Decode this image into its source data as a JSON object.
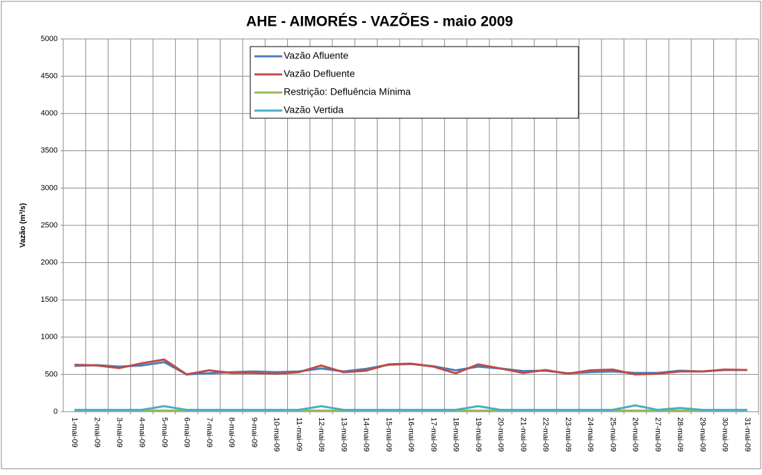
{
  "chart_data": {
    "type": "line",
    "title": "AHE - AIMORÉS - VAZÕES - maio 2009",
    "y_label": "Vazão (m³/s)",
    "categories": [
      "1-mai-09",
      "2-mai-09",
      "3-mai-09",
      "4-mai-09",
      "5-mai-09",
      "6-mai-09",
      "7-mai-09",
      "8-mai-09",
      "9-mai-09",
      "10-mai-09",
      "11-mai-09",
      "12-mai-09",
      "13-mai-09",
      "14-mai-09",
      "15-mai-09",
      "16-mai-09",
      "17-mai-09",
      "18-mai-09",
      "19-mai-09",
      "20-mai-09",
      "21-mai-09",
      "22-mai-09",
      "23-mai-09",
      "24-mai-09",
      "25-mai-09",
      "26-mai-09",
      "27-mai-09",
      "28-mai-09",
      "29-mai-09",
      "30-mai-09",
      "31-mai-09"
    ],
    "series": [
      {
        "name": "Vazão Afluente",
        "color": "#4a7ebb",
        "values": [
          615,
          625,
          605,
          620,
          665,
          500,
          515,
          530,
          540,
          530,
          540,
          580,
          540,
          575,
          630,
          640,
          610,
          555,
          605,
          580,
          545,
          550,
          515,
          530,
          540,
          520,
          520,
          550,
          540,
          560,
          560
        ]
      },
      {
        "name": "Vazão Defluente",
        "color": "#be4b48",
        "values": [
          630,
          620,
          585,
          650,
          700,
          500,
          555,
          520,
          520,
          510,
          530,
          620,
          530,
          550,
          635,
          645,
          605,
          515,
          635,
          580,
          520,
          560,
          510,
          555,
          565,
          500,
          510,
          540,
          540,
          565,
          560
        ]
      },
      {
        "name": "Restrição: Defluência Mínima",
        "color": "#98b954",
        "values": [
          15,
          15,
          15,
          15,
          15,
          15,
          15,
          15,
          15,
          15,
          15,
          15,
          15,
          15,
          15,
          15,
          15,
          15,
          15,
          15,
          15,
          15,
          15,
          15,
          15,
          15,
          15,
          15,
          15,
          15,
          15
        ]
      },
      {
        "name": "Vazão Vertida",
        "color": "#4bacc6",
        "values": [
          25,
          25,
          25,
          25,
          75,
          25,
          25,
          25,
          25,
          25,
          25,
          75,
          25,
          25,
          25,
          25,
          25,
          25,
          75,
          25,
          25,
          25,
          25,
          25,
          25,
          85,
          25,
          50,
          25,
          25,
          25
        ]
      }
    ],
    "ylim": [
      0,
      5000
    ],
    "yticks": [
      0,
      500,
      1000,
      1500,
      2000,
      2500,
      3000,
      3500,
      4000,
      4500,
      5000
    ],
    "grid": true
  }
}
